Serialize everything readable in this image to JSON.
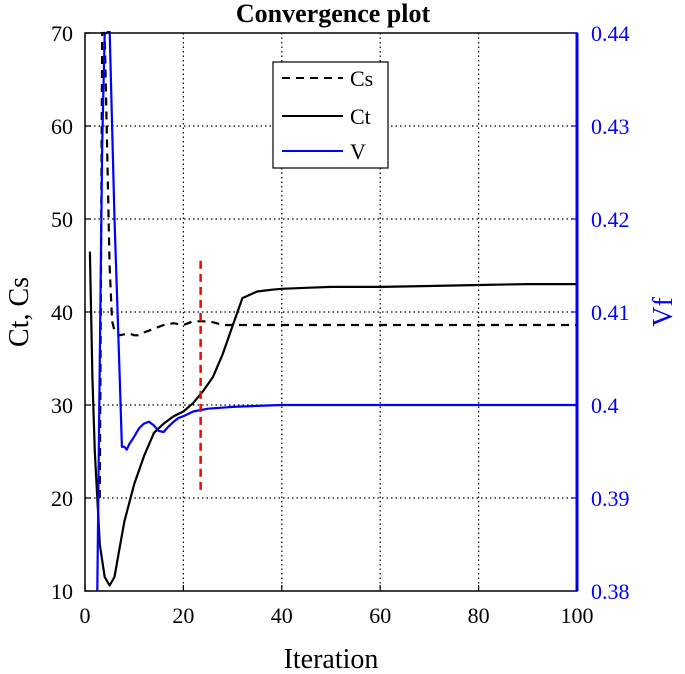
{
  "chart_data": {
    "type": "line",
    "title": "Convergence plot",
    "xlabel": "Iteration",
    "ylabel_left": "Ct, Cs",
    "ylabel_right": "Vf",
    "xlim": [
      0,
      100
    ],
    "ylim_left": [
      10,
      70
    ],
    "ylim_right": [
      0.38,
      0.44
    ],
    "xticks": [
      0,
      20,
      40,
      60,
      80,
      100
    ],
    "yticks_left": [
      10,
      20,
      30,
      40,
      50,
      60,
      70
    ],
    "yticks_right": [
      0.38,
      0.39,
      0.4,
      0.41,
      0.42,
      0.43,
      0.44
    ],
    "ytick_labels_right": [
      "0.38",
      "0.39",
      "0.4",
      "0.41",
      "0.42",
      "0.43",
      "0.44"
    ],
    "grid": true,
    "legend_position": "top-center",
    "colors": {
      "Cs": "#000000",
      "Ct": "#000000",
      "V": "#0000ff",
      "marker": "#ff0000",
      "right_axis": "#0000ff"
    },
    "series": [
      {
        "name": "Cs",
        "axis": "left",
        "style": "dashed",
        "x": [
          3,
          3.5,
          4,
          5,
          5.5,
          6,
          7,
          8,
          9,
          10,
          11,
          12,
          14,
          16,
          18,
          20,
          22,
          24,
          26,
          28,
          30,
          40,
          60,
          80,
          100
        ],
        "y": [
          20,
          70,
          70,
          45,
          39,
          38,
          37.5,
          37.6,
          37.7,
          37.5,
          37.5,
          37.8,
          38.2,
          38.6,
          38.8,
          38.6,
          39,
          39,
          38.9,
          38.6,
          38.6,
          38.6,
          38.6,
          38.6,
          38.6
        ]
      },
      {
        "name": "Ct",
        "axis": "left",
        "style": "solid",
        "x": [
          1,
          1.5,
          2,
          3,
          4,
          5,
          6,
          7,
          8,
          10,
          12,
          14,
          16,
          18,
          20,
          22,
          24,
          26,
          28,
          30,
          32,
          35,
          38,
          40,
          45,
          50,
          60,
          70,
          80,
          90,
          100
        ],
        "y": [
          46.5,
          33,
          25,
          15,
          11.5,
          10.6,
          11.5,
          14.5,
          17.5,
          21.5,
          24.5,
          27,
          28,
          28.8,
          29.3,
          30.2,
          31.5,
          33,
          35.5,
          38.5,
          41.5,
          42.2,
          42.4,
          42.5,
          42.6,
          42.7,
          42.7,
          42.8,
          42.9,
          43,
          43
        ]
      },
      {
        "name": "V",
        "axis": "right",
        "style": "solid",
        "x": [
          2.5,
          3,
          3.5,
          4,
          4.5,
          5,
          5.5,
          6,
          7,
          7.5,
          8,
          8.5,
          9,
          10,
          11,
          12,
          13,
          14,
          15,
          16,
          17,
          18,
          19,
          20,
          22,
          25,
          30,
          35,
          40,
          60,
          80,
          100
        ],
        "y": [
          0.38,
          0.405,
          0.428,
          0.44,
          0.44,
          0.4405,
          0.43,
          0.42,
          0.404,
          0.3955,
          0.3955,
          0.3952,
          0.3958,
          0.3966,
          0.3975,
          0.398,
          0.3982,
          0.3978,
          0.3972,
          0.3971,
          0.3977,
          0.3982,
          0.3986,
          0.3988,
          0.3993,
          0.3996,
          0.3998,
          0.3999,
          0.4,
          0.4,
          0.4,
          0.4
        ]
      }
    ],
    "marker_line": {
      "x": 23.5,
      "y_from": 20.5,
      "y_to": 45.5,
      "style": "dashed"
    }
  }
}
